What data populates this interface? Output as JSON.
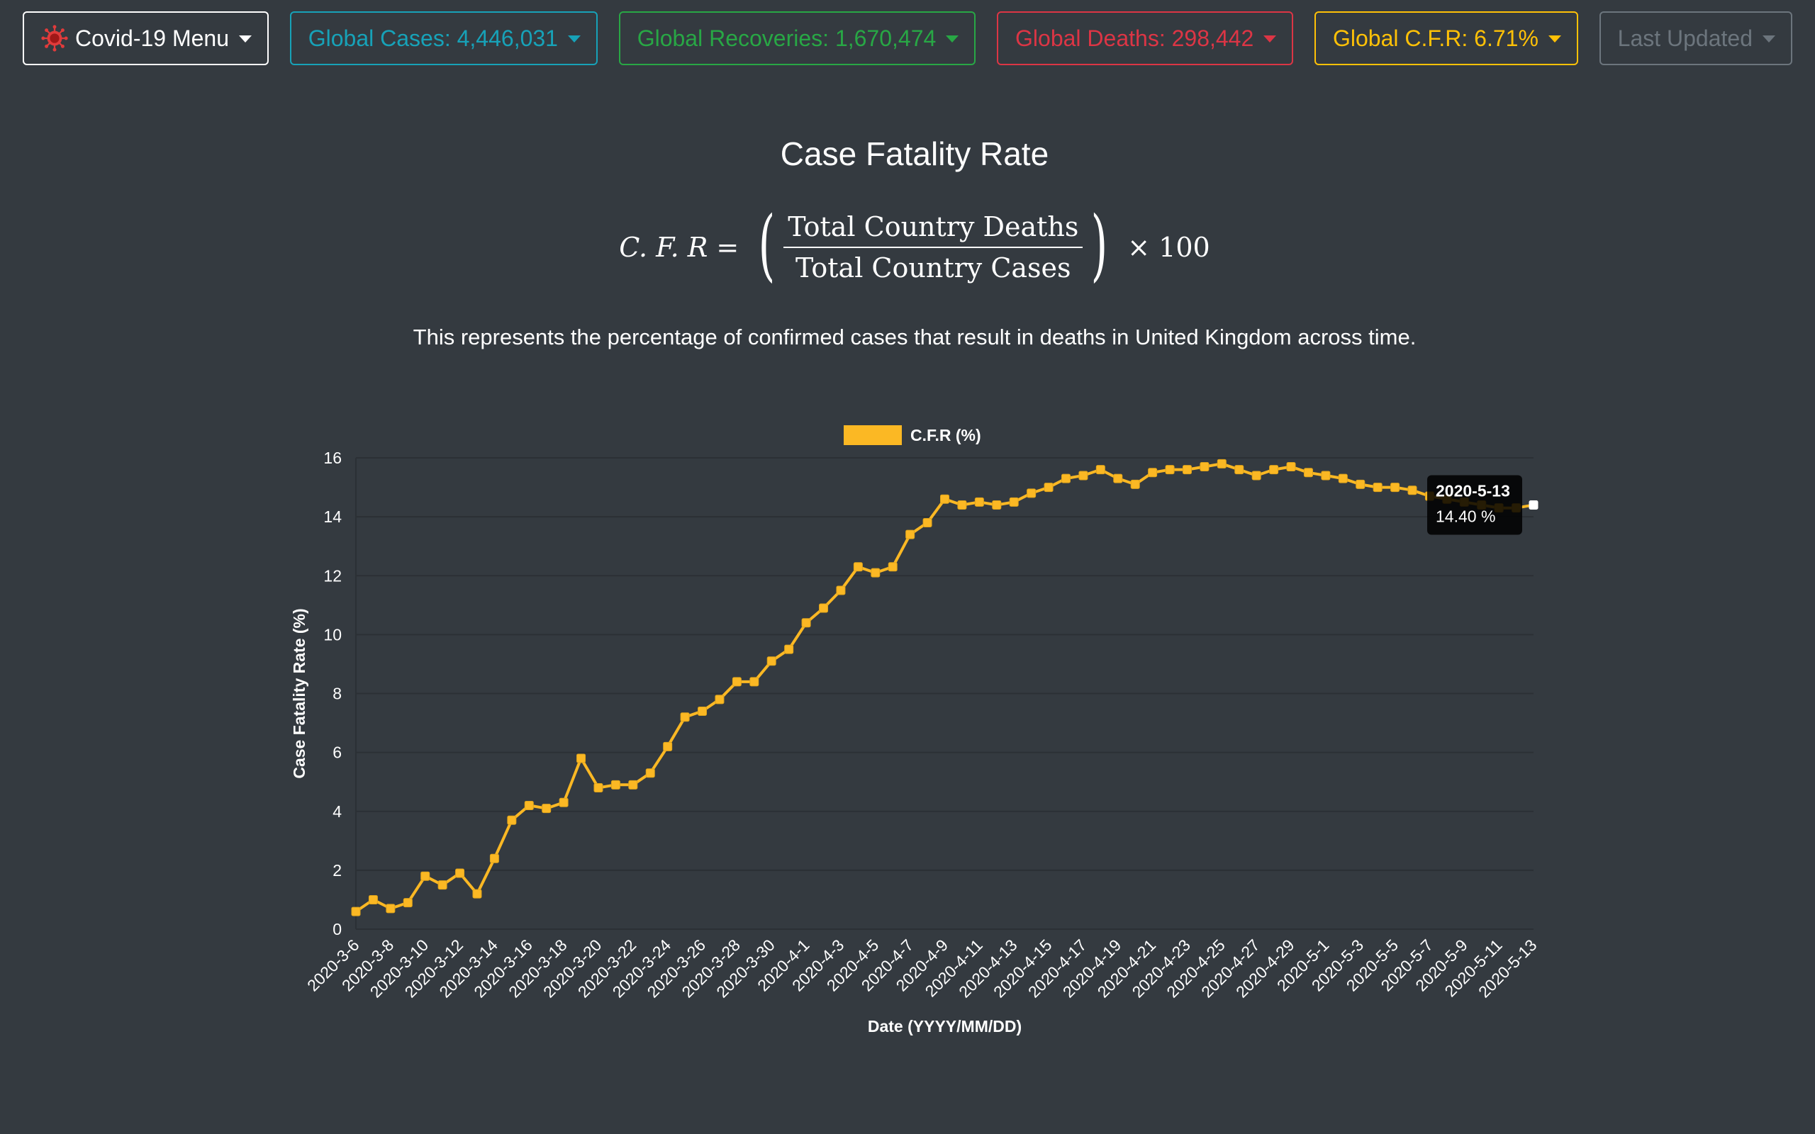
{
  "topbar": {
    "menu_label": "Covid-19 Menu",
    "cases_label": "Global Cases: 4,446,031",
    "recoveries_label": "Global Recoveries: 1,670,474",
    "deaths_label": "Global Deaths: 298,442",
    "cfr_label": "Global C.F.R: 6.71%",
    "updated_label": "Last Updated"
  },
  "header": {
    "title": "Case Fatality Rate",
    "formula_lhs": "C. F. R =",
    "formula_numerator": "Total Country Deaths",
    "formula_denominator": "Total Country Cases",
    "formula_rhs": "× 100",
    "description": "This represents the percentage of confirmed cases that result in deaths in United Kingdom across time."
  },
  "colors": {
    "background": "#343a40",
    "line": "#fbb824",
    "cases": "#17a2b8",
    "recoveries": "#28a745",
    "deaths": "#dc3545",
    "cfr": "#ffc107",
    "muted": "#6c757d"
  },
  "tooltip": {
    "title": "2020-5-13",
    "value": "14.40 %"
  },
  "chart_data": {
    "type": "line",
    "title": "",
    "xlabel": "Date (YYYY/MM/DD)",
    "ylabel": "Case Fatality Rate (%)",
    "ylim": [
      0,
      16
    ],
    "yticks": [
      0,
      2,
      4,
      6,
      8,
      10,
      12,
      14,
      16
    ],
    "grid": true,
    "legend_position": "top-center",
    "x": [
      "2020-3-6",
      "2020-3-7",
      "2020-3-8",
      "2020-3-9",
      "2020-3-10",
      "2020-3-11",
      "2020-3-12",
      "2020-3-13",
      "2020-3-14",
      "2020-3-15",
      "2020-3-16",
      "2020-3-17",
      "2020-3-18",
      "2020-3-19",
      "2020-3-20",
      "2020-3-21",
      "2020-3-22",
      "2020-3-23",
      "2020-3-24",
      "2020-3-25",
      "2020-3-26",
      "2020-3-27",
      "2020-3-28",
      "2020-3-29",
      "2020-3-30",
      "2020-3-31",
      "2020-4-1",
      "2020-4-2",
      "2020-4-3",
      "2020-4-4",
      "2020-4-5",
      "2020-4-6",
      "2020-4-7",
      "2020-4-8",
      "2020-4-9",
      "2020-4-10",
      "2020-4-11",
      "2020-4-12",
      "2020-4-13",
      "2020-4-14",
      "2020-4-15",
      "2020-4-16",
      "2020-4-17",
      "2020-4-18",
      "2020-4-19",
      "2020-4-20",
      "2020-4-21",
      "2020-4-22",
      "2020-4-23",
      "2020-4-24",
      "2020-4-25",
      "2020-4-26",
      "2020-4-27",
      "2020-4-28",
      "2020-4-29",
      "2020-4-30",
      "2020-5-1",
      "2020-5-2",
      "2020-5-3",
      "2020-5-4",
      "2020-5-5",
      "2020-5-6",
      "2020-5-7",
      "2020-5-8",
      "2020-5-9",
      "2020-5-10",
      "2020-5-11",
      "2020-5-12",
      "2020-5-13"
    ],
    "xtick_labels": [
      "2020-3-6",
      "2020-3-8",
      "2020-3-10",
      "2020-3-12",
      "2020-3-14",
      "2020-3-16",
      "2020-3-18",
      "2020-3-20",
      "2020-3-22",
      "2020-3-24",
      "2020-3-26",
      "2020-3-28",
      "2020-3-30",
      "2020-4-1",
      "2020-4-3",
      "2020-4-5",
      "2020-4-7",
      "2020-4-9",
      "2020-4-11",
      "2020-4-13",
      "2020-4-15",
      "2020-4-17",
      "2020-4-19",
      "2020-4-21",
      "2020-4-23",
      "2020-4-25",
      "2020-4-27",
      "2020-4-29",
      "2020-5-1",
      "2020-5-3",
      "2020-5-5",
      "2020-5-7",
      "2020-5-9",
      "2020-5-11",
      "2020-5-13"
    ],
    "series": [
      {
        "name": "C.F.R (%)",
        "values": [
          0.6,
          1.0,
          0.7,
          0.9,
          1.8,
          1.5,
          1.9,
          1.2,
          2.4,
          3.7,
          4.2,
          4.1,
          4.3,
          5.8,
          4.8,
          4.9,
          4.9,
          5.3,
          6.2,
          7.2,
          7.4,
          7.8,
          8.4,
          8.4,
          9.1,
          9.5,
          10.4,
          10.9,
          11.5,
          12.3,
          12.1,
          12.3,
          13.4,
          13.8,
          14.6,
          14.4,
          14.5,
          14.4,
          14.5,
          14.8,
          15.0,
          15.3,
          15.4,
          15.6,
          15.3,
          15.1,
          15.5,
          15.6,
          15.6,
          15.7,
          15.8,
          15.6,
          15.4,
          15.6,
          15.7,
          15.5,
          15.4,
          15.3,
          15.1,
          15.0,
          15.0,
          14.9,
          14.7,
          14.6,
          14.5,
          14.4,
          14.3,
          14.3,
          14.4
        ]
      }
    ]
  }
}
